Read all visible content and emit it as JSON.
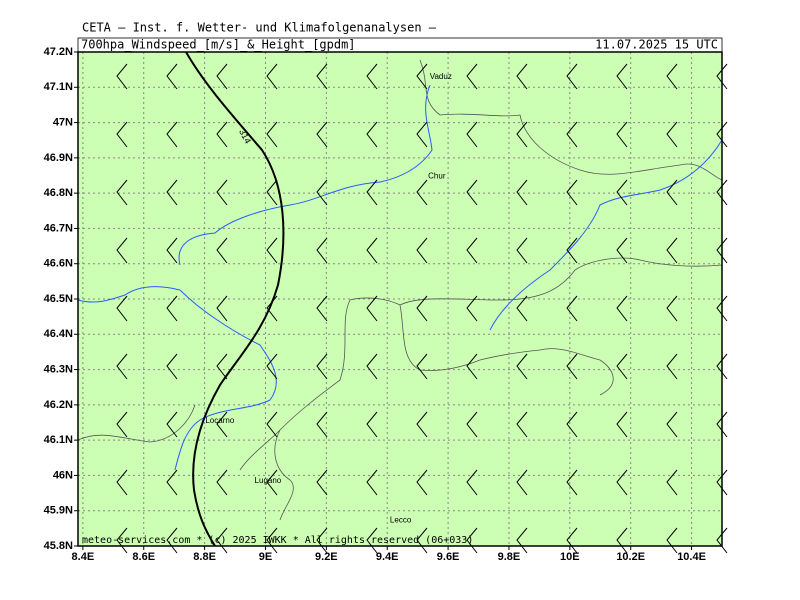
{
  "header": {
    "source": "CETA – Inst. f. Wetter- und Klimafolgenanalysen –",
    "title": "700hpa_Windspeed_[m/s]_&_Height_[gpdm]",
    "date": "11.07.2025 15 UTC"
  },
  "map": {
    "xlim": [
      8.384,
      10.5
    ],
    "ylim": [
      45.8,
      47.2
    ],
    "xticks": [
      {
        "value": 8.4,
        "label": "8.4E"
      },
      {
        "value": 8.6,
        "label": "8.6E"
      },
      {
        "value": 8.8,
        "label": "8.8E"
      },
      {
        "value": 9,
        "label": "9E"
      },
      {
        "value": 9.2,
        "label": "9.2E"
      },
      {
        "value": 9.4,
        "label": "9.4E"
      },
      {
        "value": 9.6,
        "label": "9.6E"
      },
      {
        "value": 9.8,
        "label": "9.8E"
      },
      {
        "value": 10,
        "label": "10E"
      },
      {
        "value": 10.2,
        "label": "10.2E"
      },
      {
        "value": 10.4,
        "label": "10.4E"
      }
    ],
    "yticks": [
      {
        "value": 47.2,
        "label": "47.2N"
      },
      {
        "value": 47.1,
        "label": "47.1N"
      },
      {
        "value": 47,
        "label": "47N"
      },
      {
        "value": 46.9,
        "label": "46.9N"
      },
      {
        "value": 46.8,
        "label": "46.8N"
      },
      {
        "value": 46.7,
        "label": "46.7N"
      },
      {
        "value": 46.6,
        "label": "46.6N"
      },
      {
        "value": 46.5,
        "label": "46.5N"
      },
      {
        "value": 46.4,
        "label": "46.4N"
      },
      {
        "value": 46.3,
        "label": "46.3N"
      },
      {
        "value": 46.2,
        "label": "46.2N"
      },
      {
        "value": 46.1,
        "label": "46.1N"
      },
      {
        "value": 46,
        "label": "46N"
      },
      {
        "value": 45.9,
        "label": "45.9N"
      },
      {
        "value": 45.8,
        "label": "45.8N"
      }
    ],
    "places": [
      {
        "name": "Vaduz",
        "lon": 9.576,
        "lat": 47.129
      },
      {
        "name": "Chur",
        "lon": 9.563,
        "lat": 46.848
      },
      {
        "name": "Locarno",
        "lon": 8.85,
        "lat": 46.155
      },
      {
        "name": "Lugano",
        "lon": 9.008,
        "lat": 45.984
      },
      {
        "name": "Lecco",
        "lon": 9.444,
        "lat": 45.873
      }
    ],
    "contour_label": "314",
    "footer": "meteo-services.com * (c) 2025 IWKK * All rights reserved (06+033)"
  }
}
